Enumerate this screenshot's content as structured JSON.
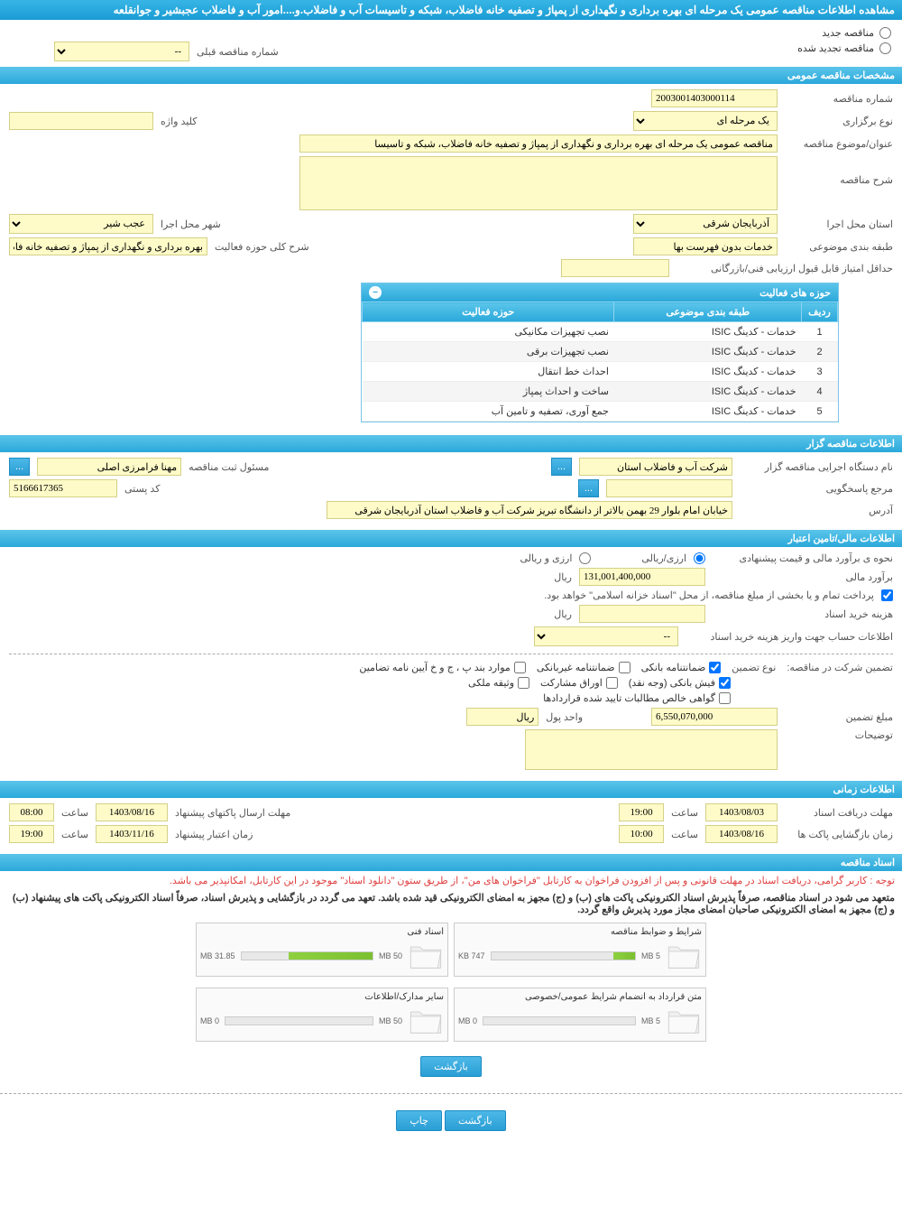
{
  "colors": {
    "header_grad_top": "#37b5e5",
    "header_grad_bot": "#1a9cd4",
    "section_grad_top": "#5bc5ea",
    "section_grad_bot": "#2aa8da",
    "input_bg": "#fffbc8",
    "input_border": "#d4d088",
    "progress_fill": "#8ed040",
    "note_red": "#e04040"
  },
  "main_title": "مشاهده اطلاعات مناقصه عمومی یک مرحله ای بهره برداری و نگهداری از پمپاژ و تصفیه خانه فاضلاب، شبکه و تاسیسات آب و فاضلاب.و....امور آب و فاضلاب عجبشیر و جوانقلعه",
  "radio": {
    "new_label": "مناقصه جدید",
    "renewed_label": "مناقصه تجدید شده",
    "prev_label": "شماره مناقصه قبلی",
    "prev_placeholder": "--"
  },
  "section_general": {
    "title": "مشخصات مناقصه عمومی",
    "tender_no_label": "شماره مناقصه",
    "tender_no": "2003001403000114",
    "holding_type_label": "نوع برگزاری",
    "holding_type": "یک مرحله ای",
    "keyword_label": "کلید واژه",
    "keyword": "",
    "subject_label": "عنوان/موضوع مناقصه",
    "subject": "مناقصه عمومی یک مرحله ای بهره برداری و نگهداری از پمپاژ و تصفیه خانه فاضلاب، شبکه و تاسیسا",
    "desc_label": "شرح مناقصه",
    "desc": "",
    "province_label": "استان محل اجرا",
    "province": "آذربایجان شرقی",
    "city_label": "شهر محل اجرا",
    "city": "عجب شیر",
    "category_label": "طبقه بندی موضوعی",
    "category": "خدمات بدون فهرست بها",
    "scope_label": "شرح کلی حوزه فعالیت",
    "scope": "بهره برداری و نگهداری از پمپاژ و تصفیه خانه فاضلاب، شبکه و",
    "min_score_label": "حداقل امتیاز قابل قبول ارزیابی فنی/بازرگانی",
    "min_score": ""
  },
  "activity_panel": {
    "title": "حوزه های فعالیت",
    "col_row": "ردیف",
    "col_category": "طبقه بندی موضوعی",
    "col_activity": "حوزه فعالیت",
    "rows": [
      {
        "n": "1",
        "cat": "خدمات - کدینگ ISIC",
        "act": "نصب تجهیزات مکانیکی"
      },
      {
        "n": "2",
        "cat": "خدمات - کدینگ ISIC",
        "act": "نصب تجهیزات برقی"
      },
      {
        "n": "3",
        "cat": "خدمات - کدینگ ISIC",
        "act": "احداث خط انتقال"
      },
      {
        "n": "4",
        "cat": "خدمات - کدینگ ISIC",
        "act": "ساخت و احداث پمپاژ"
      },
      {
        "n": "5",
        "cat": "خدمات - کدینگ ISIC",
        "act": "جمع آوری، تصفیه و تامین آب"
      }
    ]
  },
  "section_owner": {
    "title": "اطلاعات مناقصه گزار",
    "org_label": "نام دستگاه اجرایی مناقصه گزار",
    "org": "شرکت آب و فاضلاب استان",
    "manager_label": "مسئول ثبت مناقصه",
    "manager": "مهنا فرامرزی اصلی",
    "respond_label": "مرجع پاسخگویی",
    "respond": "",
    "postal_label": "کد پستی",
    "postal": "5166617365",
    "address_label": "آدرس",
    "address": "خیابان امام بلوار 29 بهمن بالاتر از دانشگاه تبریز شرکت آب و فاضلاب استان آذربایجان شرقی"
  },
  "section_finance": {
    "title": "اطلاعات مالی/تامین اعتبار",
    "estimate_type_label": "نحوه ی برآورد مالی و قیمت پیشنهادی",
    "opt_arz_rial": "ارزی/ریالی",
    "opt_arz_o_rial": "ارزی و ریالی",
    "estimate_label": "برآورد مالی",
    "estimate": "131,001,400,000",
    "currency": "ریال",
    "payment_note": "پرداخت تمام و یا بخشی از مبلغ مناقصه، از محل \"اسناد خزانه اسلامی\" خواهد بود.",
    "doc_fee_label": "هزینه خرید اسناد",
    "doc_fee": "",
    "account_label": "اطلاعات حساب جهت واریز هزینه خرید اسناد",
    "account": "--"
  },
  "guarantee": {
    "label": "تضمین شرکت در مناقصه:",
    "type_label": "نوع تضمین",
    "opts": {
      "bank": "ضمانتنامه بانکی",
      "nonbank": "ضمانتنامه غیربانکی",
      "clauses": "موارد بند پ ، ج و خ آیین نامه تضامین",
      "cash": "فیش بانکی (وجه نقد)",
      "bonds": "اوراق مشارکت",
      "property": "وثیقه ملکی",
      "receivables": "گواهی خالص مطالبات تایید شده قراردادها"
    },
    "amount_label": "مبلغ تضمین",
    "amount": "6,550,070,000",
    "unit_label": "واحد پول",
    "unit": "ریال",
    "notes_label": "توضیحات",
    "notes": ""
  },
  "section_time": {
    "title": "اطلاعات زمانی",
    "doc_deadline_label": "مهلت دریافت اسناد",
    "doc_deadline_date": "1403/08/03",
    "doc_deadline_time": "19:00",
    "pkg_deadline_label": "مهلت ارسال پاکتهای پیشنهاد",
    "pkg_deadline_date": "1403/08/16",
    "pkg_deadline_time": "08:00",
    "open_label": "زمان بازگشایی پاکت ها",
    "open_date": "1403/08/16",
    "open_time": "10:00",
    "validity_label": "زمان اعتبار پیشنهاد",
    "validity_date": "1403/11/16",
    "validity_time": "19:00",
    "time_label": "ساعت"
  },
  "section_docs": {
    "title": "اسناد مناقصه",
    "note1": "توجه : کاربر گرامی، دریافت اسناد در مهلت قانونی و پس از افزودن فراخوان به کارتابل \"فراخوان های من\"، از طریق ستون \"دانلود اسناد\" موجود در این کارتابل، امکانپذیر می باشد.",
    "note2": "متعهد می شود در اسناد مناقصه، صرفاً پذیرش اسناد الکترونیکی پاکت های (ب) و (ج) مجهز به امضای الکترونیکی قید شده باشد. تعهد می گردد در بازگشایی و پذیرش اسناد، صرفاً اسناد الکترونیکی پاکت های پیشنهاد (ب) و (ج) مجهز به امضای الکترونیکی صاحبان امضای مجاز مورد پذیرش واقع گردد.",
    "files": [
      {
        "title": "شرایط و ضوابط مناقصه",
        "used": "747 KB",
        "total": "5 MB",
        "pct": 15
      },
      {
        "title": "اسناد فنی",
        "used": "31.85 MB",
        "total": "50 MB",
        "pct": 64
      },
      {
        "title": "متن قرارداد به انضمام شرایط عمومی/خصوصی",
        "used": "0 MB",
        "total": "5 MB",
        "pct": 0
      },
      {
        "title": "سایر مدارک/اطلاعات",
        "used": "0 MB",
        "total": "50 MB",
        "pct": 0
      }
    ]
  },
  "buttons": {
    "back": "بازگشت",
    "print": "چاپ",
    "more": "..."
  }
}
